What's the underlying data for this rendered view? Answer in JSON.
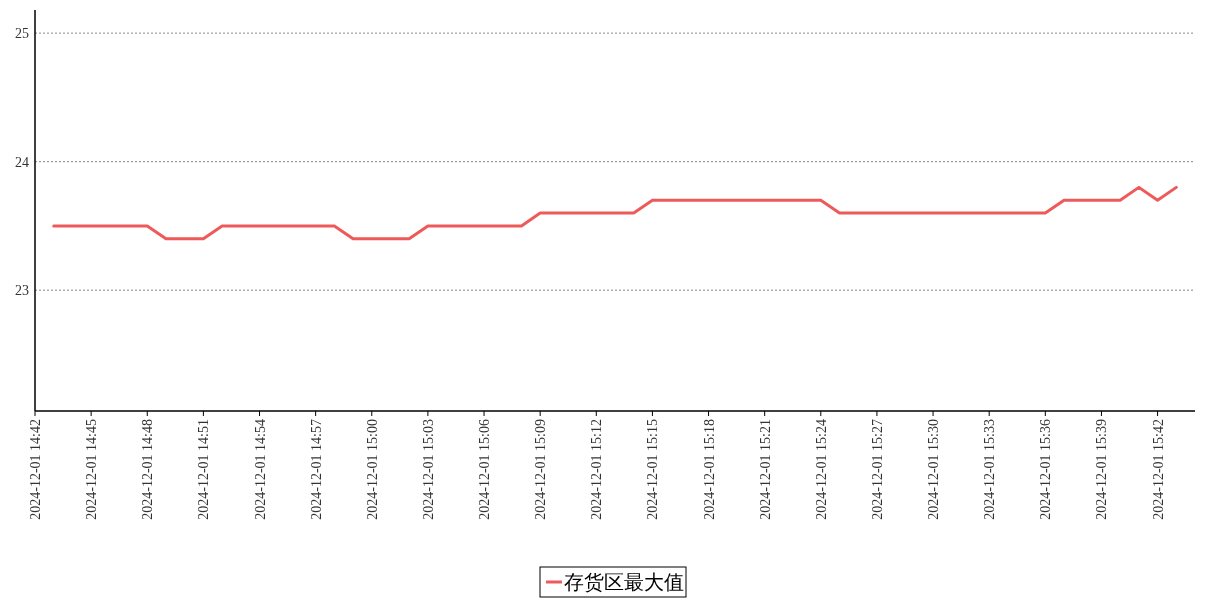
{
  "chart_data": {
    "type": "line",
    "grid": "y",
    "legend": "bottom",
    "x": [
      "2024-12-01T14:43",
      "2024-12-01T14:44",
      "2024-12-01T14:45",
      "2024-12-01T14:46",
      "2024-12-01T14:47",
      "2024-12-01T14:48",
      "2024-12-01T14:49",
      "2024-12-01T14:50",
      "2024-12-01T14:51",
      "2024-12-01T14:52",
      "2024-12-01T14:53",
      "2024-12-01T14:54",
      "2024-12-01T14:55",
      "2024-12-01T14:56",
      "2024-12-01T14:57",
      "2024-12-01T14:58",
      "2024-12-01T14:59",
      "2024-12-01T15:00",
      "2024-12-01T15:01",
      "2024-12-01T15:02",
      "2024-12-01T15:03",
      "2024-12-01T15:04",
      "2024-12-01T15:05",
      "2024-12-01T15:06",
      "2024-12-01T15:07",
      "2024-12-01T15:08",
      "2024-12-01T15:09",
      "2024-12-01T15:10",
      "2024-12-01T15:11",
      "2024-12-01T15:12",
      "2024-12-01T15:13",
      "2024-12-01T15:14",
      "2024-12-01T15:15",
      "2024-12-01T15:16",
      "2024-12-01T15:17",
      "2024-12-01T15:18",
      "2024-12-01T15:19",
      "2024-12-01T15:20",
      "2024-12-01T15:21",
      "2024-12-01T15:22",
      "2024-12-01T15:23",
      "2024-12-01T15:24",
      "2024-12-01T15:25",
      "2024-12-01T15:26",
      "2024-12-01T15:27",
      "2024-12-01T15:28",
      "2024-12-01T15:29",
      "2024-12-01T15:30",
      "2024-12-01T15:31",
      "2024-12-01T15:32",
      "2024-12-01T15:33",
      "2024-12-01T15:34",
      "2024-12-01T15:35",
      "2024-12-01T15:36",
      "2024-12-01T15:37",
      "2024-12-01T15:38",
      "2024-12-01T15:39",
      "2024-12-01T15:40",
      "2024-12-01T15:41",
      "2024-12-01T15:42",
      "2024-12-01T15:43"
    ],
    "series": [
      {
        "name": "存货区最大值",
        "color": "#ee5a5a",
        "values": [
          23.5,
          23.5,
          23.5,
          23.5,
          23.5,
          23.5,
          23.4,
          23.4,
          23.4,
          23.5,
          23.5,
          23.5,
          23.5,
          23.5,
          23.5,
          23.5,
          23.4,
          23.4,
          23.4,
          23.4,
          23.5,
          23.5,
          23.5,
          23.5,
          23.5,
          23.5,
          23.6,
          23.6,
          23.6,
          23.6,
          23.6,
          23.6,
          23.7,
          23.7,
          23.7,
          23.7,
          23.7,
          23.7,
          23.7,
          23.7,
          23.7,
          23.7,
          23.6,
          23.6,
          23.6,
          23.6,
          23.6,
          23.6,
          23.6,
          23.6,
          23.6,
          23.6,
          23.6,
          23.6,
          23.7,
          23.7,
          23.7,
          23.7,
          23.8,
          23.7,
          23.8
        ]
      }
    ],
    "xlim": [
      "2024-12-01T14:42",
      "2024-12-01T15:44"
    ],
    "ylim": [
      22.06,
      25.18
    ],
    "yticks": [
      23,
      24,
      25
    ],
    "xticks": [
      {
        "value": "2024-12-01T14:42",
        "label": "2024-12-01 14:42"
      },
      {
        "value": "2024-12-01T14:45",
        "label": "2024-12-01 14:45"
      },
      {
        "value": "2024-12-01T14:48",
        "label": "2024-12-01 14:48"
      },
      {
        "value": "2024-12-01T14:51",
        "label": "2024-12-01 14:51"
      },
      {
        "value": "2024-12-01T14:54",
        "label": "2024-12-01 14:54"
      },
      {
        "value": "2024-12-01T14:57",
        "label": "2024-12-01 14:57"
      },
      {
        "value": "2024-12-01T15:00",
        "label": "2024-12-01 15:00"
      },
      {
        "value": "2024-12-01T15:03",
        "label": "2024-12-01 15:03"
      },
      {
        "value": "2024-12-01T15:06",
        "label": "2024-12-01 15:06"
      },
      {
        "value": "2024-12-01T15:09",
        "label": "2024-12-01 15:09"
      },
      {
        "value": "2024-12-01T15:12",
        "label": "2024-12-01 15:12"
      },
      {
        "value": "2024-12-01T15:15",
        "label": "2024-12-01 15:15"
      },
      {
        "value": "2024-12-01T15:18",
        "label": "2024-12-01 15:18"
      },
      {
        "value": "2024-12-01T15:21",
        "label": "2024-12-01 15:21"
      },
      {
        "value": "2024-12-01T15:24",
        "label": "2024-12-01 15:24"
      },
      {
        "value": "2024-12-01T15:27",
        "label": "2024-12-01 15:27"
      },
      {
        "value": "2024-12-01T15:30",
        "label": "2024-12-01 15:30"
      },
      {
        "value": "2024-12-01T15:33",
        "label": "2024-12-01 15:33"
      },
      {
        "value": "2024-12-01T15:36",
        "label": "2024-12-01 15:36"
      },
      {
        "value": "2024-12-01T15:39",
        "label": "2024-12-01 15:39"
      },
      {
        "value": "2024-12-01T15:42",
        "label": "2024-12-01 15:42"
      }
    ]
  }
}
